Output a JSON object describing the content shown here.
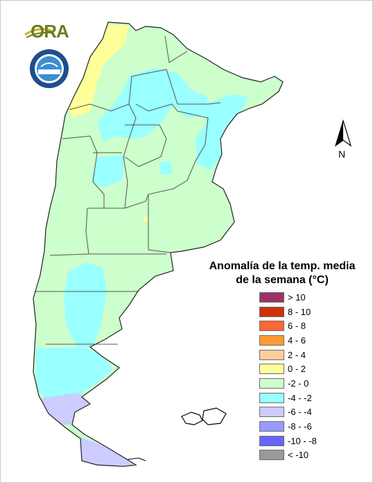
{
  "map": {
    "legend_title_line1": "Anomalía de la temp. media",
    "legend_title_line2": "de la semana (°C)",
    "north_label": "N",
    "logo_text": "ORA",
    "legend": [
      {
        "label": "> 10",
        "color": "#993366"
      },
      {
        "label": "8 - 10",
        "color": "#cc3300"
      },
      {
        "label": "6 - 8",
        "color": "#ff6633"
      },
      {
        "label": "4 - 6",
        "color": "#ff9933"
      },
      {
        "label": "2 - 4",
        "color": "#ffcc99"
      },
      {
        "label": "0 - 2",
        "color": "#ffff99"
      },
      {
        "label": "-2 - 0",
        "color": "#ccffcc"
      },
      {
        "label": "-4 - -2",
        "color": "#99ffff"
      },
      {
        "label": "-6 - -4",
        "color": "#ccccff"
      },
      {
        "label": "-8 - -6",
        "color": "#9999ff"
      },
      {
        "label": "-10 - -8",
        "color": "#6666ff"
      },
      {
        "label": "< -10",
        "color": "#999999"
      }
    ]
  }
}
